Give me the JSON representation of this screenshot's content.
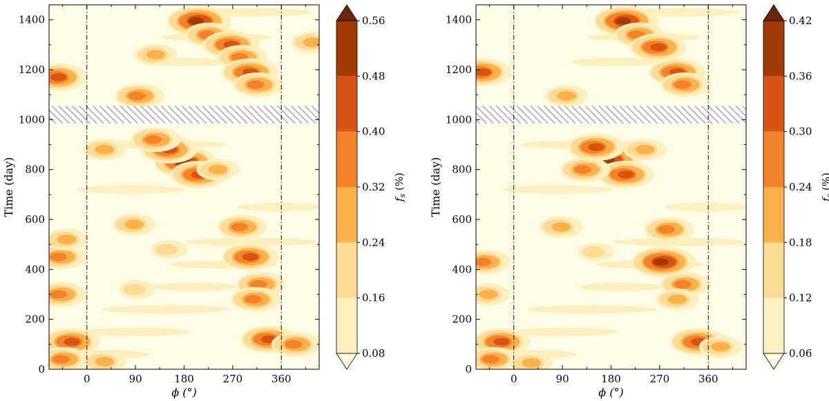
{
  "chart_data": [
    {
      "type": "heatmap",
      "subtype": "filled-contour",
      "xlabel": "ϕ (°)",
      "ylabel": "Time (day)",
      "colorbar_label": "f_s (%)",
      "xlim": [
        -70,
        430
      ],
      "ylim": [
        0,
        1460
      ],
      "xticks": [
        0,
        90,
        180,
        270,
        360
      ],
      "yticks": [
        0,
        200,
        400,
        600,
        800,
        1000,
        1200,
        1400
      ],
      "vlines": [
        0,
        360
      ],
      "data_gap_days": [
        985,
        1055
      ],
      "levels": [
        0.08,
        0.16,
        0.24,
        0.32,
        0.4,
        0.48,
        0.56
      ],
      "colors": [
        "#fffde5",
        "#feefbe",
        "#fedb94",
        "#fdb14a",
        "#f4822b",
        "#d95412",
        "#a33a04",
        "#6a2707"
      ],
      "spots": [
        {
          "phi": 205,
          "t": 1395,
          "level": 6
        },
        {
          "phi": 225,
          "t": 1340,
          "level": 4
        },
        {
          "phi": 265,
          "t": 1300,
          "level": 5
        },
        {
          "phi": 285,
          "t": 1250,
          "level": 4
        },
        {
          "phi": 300,
          "t": 1190,
          "level": 5
        },
        {
          "phi": 315,
          "t": 1140,
          "level": 4
        },
        {
          "phi": 125,
          "t": 1260,
          "level": 3
        },
        {
          "phi": 95,
          "t": 1095,
          "level": 4
        },
        {
          "phi": -55,
          "t": 1170,
          "level": 5
        },
        {
          "phi": 415,
          "t": 1310,
          "level": 3
        },
        {
          "phi": 180,
          "t": 830,
          "level": 6
        },
        {
          "phi": 150,
          "t": 880,
          "level": 5
        },
        {
          "phi": 125,
          "t": 920,
          "level": 4
        },
        {
          "phi": 205,
          "t": 780,
          "level": 5
        },
        {
          "phi": 240,
          "t": 800,
          "level": 3
        },
        {
          "phi": 30,
          "t": 880,
          "level": 3
        },
        {
          "phi": 285,
          "t": 570,
          "level": 4
        },
        {
          "phi": 300,
          "t": 450,
          "level": 5
        },
        {
          "phi": 320,
          "t": 340,
          "level": 4
        },
        {
          "phi": 310,
          "t": 280,
          "level": 4
        },
        {
          "phi": -50,
          "t": 450,
          "level": 4
        },
        {
          "phi": -50,
          "t": 300,
          "level": 4
        },
        {
          "phi": -40,
          "t": 520,
          "level": 3
        },
        {
          "phi": 85,
          "t": 580,
          "level": 3
        },
        {
          "phi": -30,
          "t": 110,
          "level": 5
        },
        {
          "phi": 335,
          "t": 120,
          "level": 5
        },
        {
          "phi": 385,
          "t": 100,
          "level": 4
        },
        {
          "phi": -45,
          "t": 40,
          "level": 4
        },
        {
          "phi": 30,
          "t": 30,
          "level": 3
        },
        {
          "phi": 150,
          "t": 480,
          "level": 2
        },
        {
          "phi": 90,
          "t": 320,
          "level": 2
        }
      ]
    },
    {
      "type": "heatmap",
      "subtype": "filled-contour",
      "xlabel": "ϕ (°)",
      "ylabel": "Time (day)",
      "colorbar_label": "f_s (%)",
      "xlim": [
        -70,
        430
      ],
      "ylim": [
        0,
        1460
      ],
      "xticks": [
        0,
        90,
        180,
        270,
        360
      ],
      "yticks": [
        0,
        200,
        400,
        600,
        800,
        1000,
        1200,
        1400
      ],
      "vlines": [
        0,
        360
      ],
      "data_gap_days": [
        985,
        1055
      ],
      "levels": [
        0.06,
        0.12,
        0.18,
        0.24,
        0.3,
        0.36,
        0.42
      ],
      "colors": [
        "#fffde5",
        "#feefbe",
        "#fedb94",
        "#fdb14a",
        "#f4822b",
        "#d95412",
        "#a33a04",
        "#6a2707"
      ],
      "spots": [
        {
          "phi": 205,
          "t": 1395,
          "level": 6
        },
        {
          "phi": 230,
          "t": 1340,
          "level": 4
        },
        {
          "phi": 265,
          "t": 1290,
          "level": 5
        },
        {
          "phi": 300,
          "t": 1190,
          "level": 5
        },
        {
          "phi": 315,
          "t": 1140,
          "level": 4
        },
        {
          "phi": 95,
          "t": 1095,
          "level": 3
        },
        {
          "phi": -60,
          "t": 1190,
          "level": 5
        },
        {
          "phi": 175,
          "t": 840,
          "level": 6
        },
        {
          "phi": 150,
          "t": 890,
          "level": 5
        },
        {
          "phi": 205,
          "t": 780,
          "level": 5
        },
        {
          "phi": 130,
          "t": 800,
          "level": 4
        },
        {
          "phi": 240,
          "t": 880,
          "level": 3
        },
        {
          "phi": 275,
          "t": 430,
          "level": 6
        },
        {
          "phi": 285,
          "t": 560,
          "level": 4
        },
        {
          "phi": 315,
          "t": 340,
          "level": 4
        },
        {
          "phi": 300,
          "t": 280,
          "level": 3
        },
        {
          "phi": -55,
          "t": 430,
          "level": 4
        },
        {
          "phi": -50,
          "t": 300,
          "level": 3
        },
        {
          "phi": 85,
          "t": 570,
          "level": 3
        },
        {
          "phi": -25,
          "t": 110,
          "level": 5
        },
        {
          "phi": 340,
          "t": 110,
          "level": 5
        },
        {
          "phi": 380,
          "t": 90,
          "level": 3
        },
        {
          "phi": -40,
          "t": 40,
          "level": 4
        },
        {
          "phi": 30,
          "t": 25,
          "level": 3
        },
        {
          "phi": 150,
          "t": 470,
          "level": 2
        }
      ]
    }
  ]
}
